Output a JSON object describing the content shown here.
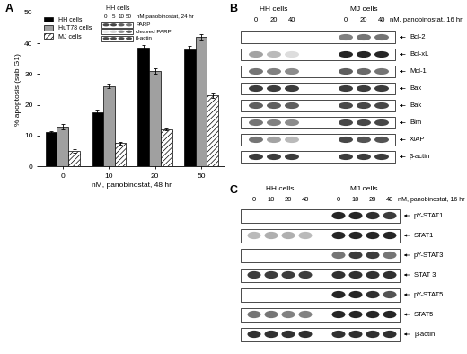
{
  "chart_data": {
    "type": "bar",
    "title": "A",
    "xlabel": "nM, panobinostat, 48 hr",
    "ylabel": "% apoptosis (sub G1)",
    "categories": [
      "0",
      "10",
      "20",
      "50"
    ],
    "series": [
      {
        "name": "HH cells",
        "color": "#000000",
        "values": [
          11,
          17.5,
          38.5,
          38
        ],
        "errors": [
          0.4,
          0.8,
          0.9,
          1.2
        ]
      },
      {
        "name": "HuT78 cells",
        "color": "#a0a0a0",
        "values": [
          13,
          26,
          31,
          42
        ],
        "errors": [
          0.9,
          0.6,
          0.8,
          1.0
        ]
      },
      {
        "name": "MJ cells",
        "color": "#ffffff",
        "values": [
          5,
          7.5,
          12,
          23
        ],
        "errors": [
          0.5,
          0.5,
          0.4,
          0.8
        ]
      }
    ],
    "ylim": [
      0,
      50
    ],
    "yticks": [
      0,
      10,
      20,
      30,
      40,
      50
    ],
    "grid": false,
    "legend": "upper left"
  },
  "inset": {
    "cells": "HH cells",
    "treatment": "nM panobinostat, 24 hr",
    "lanes": [
      0,
      5,
      10,
      50
    ],
    "rows": [
      {
        "label": "PARP",
        "intensities": [
          0.8,
          0.8,
          0.7,
          0.6
        ]
      },
      {
        "label": "cleaved PARP",
        "intensities": [
          0.1,
          0.2,
          0.5,
          0.7
        ]
      },
      {
        "label": "β-actin",
        "intensities": [
          0.8,
          0.8,
          0.8,
          0.8
        ]
      }
    ]
  },
  "blots": [
    {
      "panel": "B",
      "treatment": "nM, panobinostat, 16 hr",
      "groups": [
        {
          "cells": "HH cells",
          "lanes": [
            0,
            20,
            40
          ]
        },
        {
          "cells": "MJ cells",
          "lanes": [
            0,
            20,
            40
          ]
        }
      ],
      "rows": [
        {
          "label": "Bcl-2",
          "intensities": [
            0,
            0,
            0,
            0.55,
            0.6,
            0.6
          ]
        },
        {
          "label": "Bcl-xL",
          "intensities": [
            0.4,
            0.3,
            0.15,
            0.95,
            0.95,
            0.95
          ]
        },
        {
          "label": "Mcl-1",
          "intensities": [
            0.6,
            0.55,
            0.5,
            0.7,
            0.65,
            0.6
          ]
        },
        {
          "label": "Bax",
          "intensities": [
            0.85,
            0.85,
            0.85,
            0.85,
            0.85,
            0.85
          ]
        },
        {
          "label": "Bak",
          "intensities": [
            0.7,
            0.7,
            0.7,
            0.8,
            0.8,
            0.8
          ]
        },
        {
          "label": "Bim",
          "intensities": [
            0.6,
            0.55,
            0.5,
            0.8,
            0.8,
            0.8
          ]
        },
        {
          "label": "XIAP",
          "intensities": [
            0.6,
            0.4,
            0.3,
            0.8,
            0.75,
            0.75
          ]
        },
        {
          "label": "β-actin",
          "intensities": [
            0.85,
            0.85,
            0.85,
            0.85,
            0.85,
            0.85
          ]
        }
      ]
    },
    {
      "panel": "C",
      "treatment": "nM, panobinostat, 16 hr",
      "groups": [
        {
          "cells": "HH cells",
          "lanes": [
            0,
            10,
            20,
            40
          ]
        },
        {
          "cells": "MJ cells",
          "lanes": [
            0,
            10,
            20,
            40
          ]
        }
      ],
      "rows": [
        {
          "label": "pY-STAT1",
          "intensities": [
            0,
            0,
            0,
            0,
            0.95,
            0.95,
            0.9,
            0.85
          ]
        },
        {
          "label": "STAT1",
          "intensities": [
            0.3,
            0.35,
            0.35,
            0.3,
            0.95,
            0.95,
            0.95,
            0.95
          ]
        },
        {
          "label": "pY-STAT3",
          "intensities": [
            0,
            0,
            0,
            0,
            0.6,
            0.85,
            0.85,
            0.6
          ]
        },
        {
          "label": "STAT 3",
          "intensities": [
            0.85,
            0.85,
            0.85,
            0.85,
            0.9,
            0.9,
            0.9,
            0.9
          ]
        },
        {
          "label": "pY-STAT5",
          "intensities": [
            0,
            0,
            0,
            0,
            0.95,
            0.95,
            0.9,
            0.75
          ]
        },
        {
          "label": "STAT5",
          "intensities": [
            0.6,
            0.6,
            0.55,
            0.55,
            0.95,
            0.95,
            0.95,
            0.95
          ]
        },
        {
          "label": "β-actin",
          "intensities": [
            0.9,
            0.9,
            0.9,
            0.9,
            0.9,
            0.9,
            0.9,
            0.9
          ]
        }
      ]
    }
  ]
}
